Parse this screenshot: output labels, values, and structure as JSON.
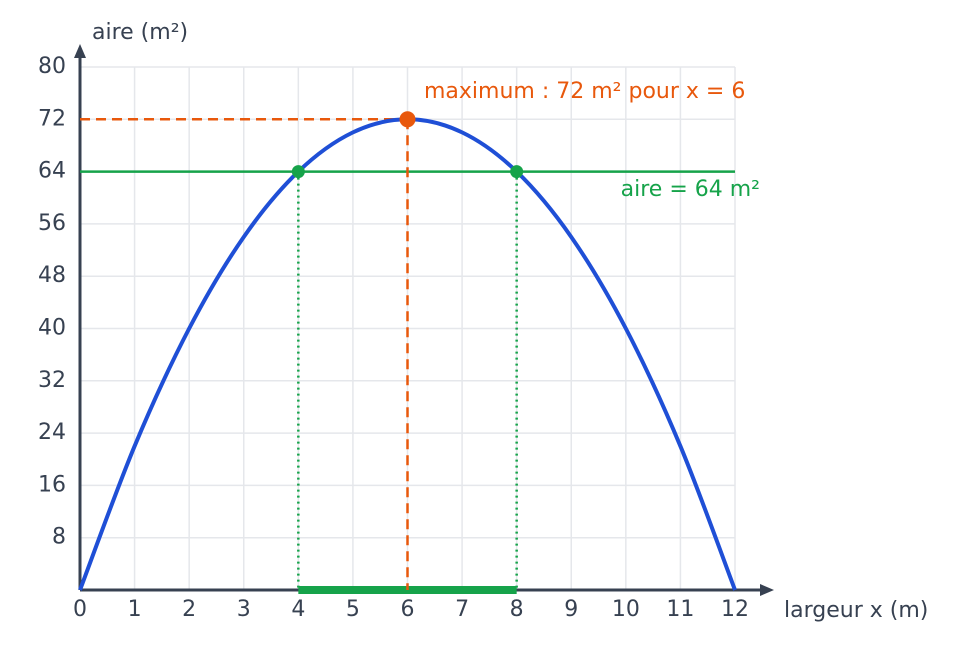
{
  "chart_data": {
    "type": "line",
    "x_label": "largeur x (m)",
    "y_label": "aire (m²)",
    "x": [
      0,
      1,
      2,
      3,
      4,
      5,
      6,
      7,
      8,
      9,
      10,
      11,
      12
    ],
    "values": [
      0,
      22,
      40,
      54,
      64,
      70,
      72,
      70,
      64,
      54,
      40,
      22,
      0
    ],
    "color": "#1f4fd6",
    "xlim": [
      0,
      12
    ],
    "xticks": [
      0,
      1,
      2,
      3,
      4,
      5,
      6,
      7,
      8,
      9,
      10,
      11,
      12
    ],
    "ylim": [
      0,
      80
    ],
    "yticks": [
      8,
      16,
      24,
      32,
      40,
      48,
      56,
      64,
      72,
      80
    ],
    "grid": true,
    "level": {
      "y": 64,
      "color": "#16a34a",
      "label": "aire = 64 m²",
      "x": [
        4,
        8
      ]
    },
    "maximum": {
      "x": 6,
      "y": 72,
      "color": "#e8580c",
      "label": "maximum : 72 m² pour x = 6"
    }
  }
}
